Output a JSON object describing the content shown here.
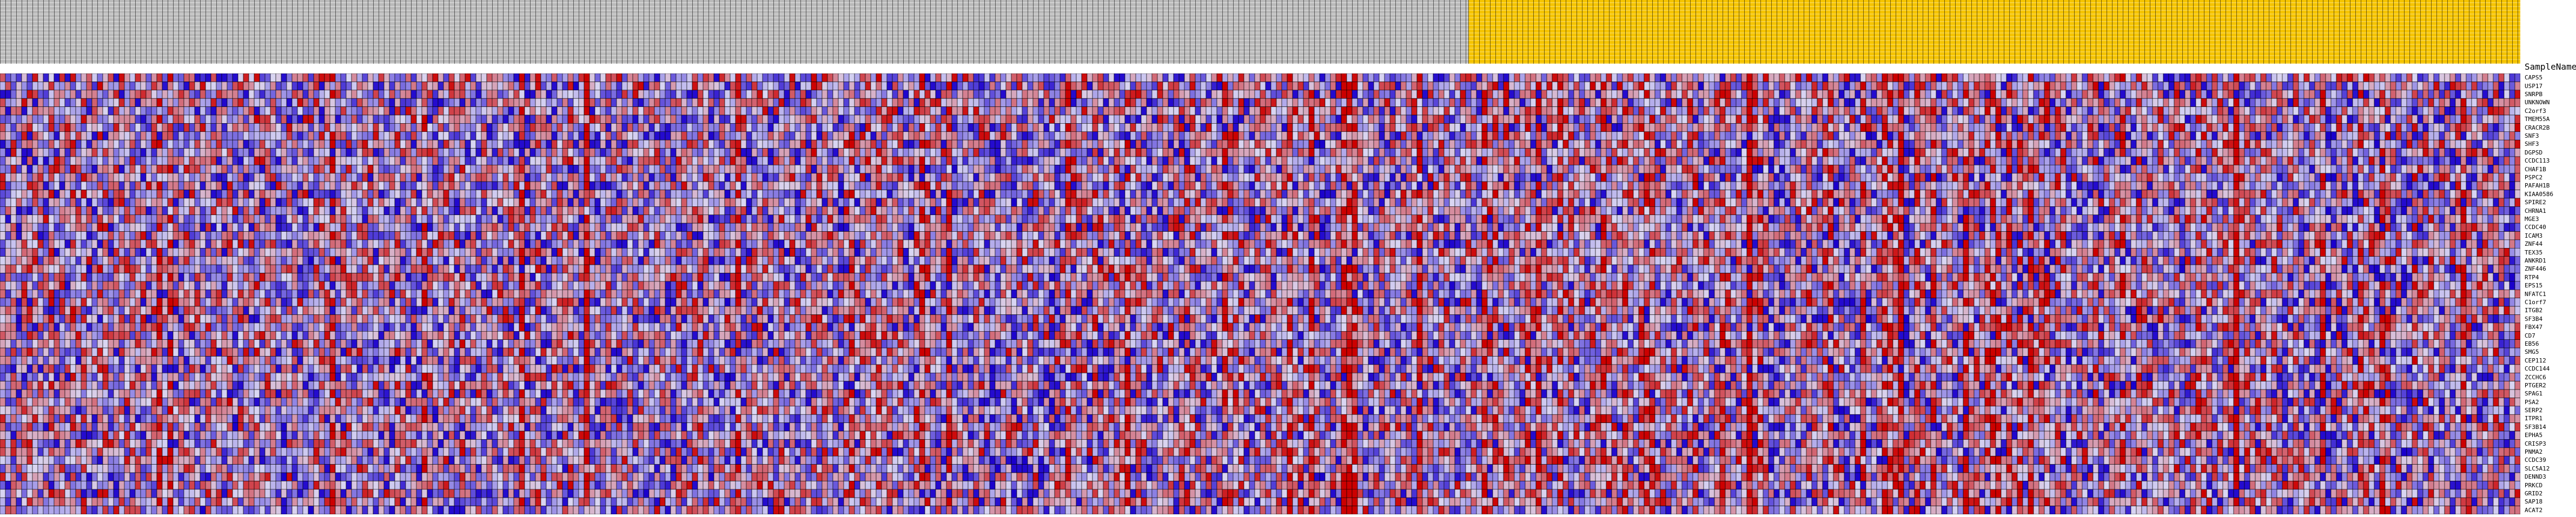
{
  "chart_data": {
    "type": "heatmap",
    "column_header_label": "SampleName",
    "n_columns": 4660,
    "n_rows": 53,
    "groups": [
      {
        "color": "#b9b9b9",
        "fraction": 0.5826
      },
      {
        "color": "#f5c400",
        "fraction": 0.4174
      }
    ],
    "colors": {
      "low": "#1a00cc",
      "mid": "#d9d6f2",
      "high": "#cc0000",
      "grid": "#000000"
    },
    "row_labels": [
      "CAPS5",
      "USP17",
      "SNRPB",
      "UNKNOWN",
      "C2orf3",
      "TMEM55A",
      "CRACR2B",
      "SNF3",
      "SHF3",
      "DGPSD",
      "CCDC113",
      "CHAF1B",
      "PSPC2",
      "PAFAH1B",
      "KIAA0586",
      "SPIRE2",
      "CHRNA1",
      "MGE3",
      "CCDC40",
      "ICAM3",
      "ZNF44",
      "TEX35",
      "ANKRD1",
      "ZNF446",
      "RTP4",
      "EPS15",
      "NFATC1",
      "C1orf7",
      "ITGB2",
      "SF3B4",
      "FBX47",
      "CD7",
      "EB56",
      "SMG5",
      "CEP112",
      "CCDC144",
      "ZCCHC6",
      "PTGER2",
      "SPAG1",
      "PSA2",
      "SERP2",
      "ITPR1",
      "SF3B14",
      "EPHA5",
      "CRISP3",
      "PNMA2",
      "CCDC39",
      "SLC5A12",
      "DENND3",
      "PRKCD",
      "GRID2",
      "SAP18",
      "ACAT2"
    ]
  }
}
